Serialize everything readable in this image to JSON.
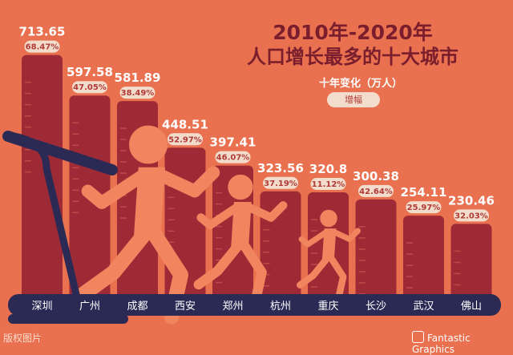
{
  "title_line1": "2010年-2020年",
  "title_line2": "人口增长最多的十大城市",
  "legend": {
    "title": "十年变化（万人）",
    "pill": "增幅"
  },
  "watermark": "版权图片",
  "brand": "Fantastic Graphics",
  "colors": {
    "background": "#E9714F",
    "bar": "#9E2A36",
    "pill": "#F2DCCC",
    "value_text": "#ffffff",
    "runner": "#F0855F",
    "treadmill": "#2B2A55",
    "axis_band": "#F1A791"
  },
  "chart_data": {
    "type": "bar",
    "categories": [
      "深圳",
      "广州",
      "成都",
      "西安",
      "郑州",
      "杭州",
      "重庆",
      "长沙",
      "武汉",
      "佛山"
    ],
    "values": [
      713.65,
      597.58,
      581.89,
      448.51,
      397.41,
      323.56,
      320.8,
      300.38,
      254.11,
      230.46
    ],
    "value_labels": [
      "713.65",
      "597.58",
      "581.89",
      "448.51",
      "397.41",
      "323.56",
      "320.8",
      "300.38",
      "254.11",
      "230.46"
    ],
    "growth_labels": [
      "68.47%",
      "47.05%",
      "38.49%",
      "52.97%",
      "46.07%",
      "37.19%",
      "11.12%",
      "42.64%",
      "25.97%",
      "32.03%"
    ],
    "title": "2010年-2020年 人口增长最多的十大城市",
    "ylabel": "十年变化（万人）",
    "ylim": [
      0,
      715
    ]
  }
}
